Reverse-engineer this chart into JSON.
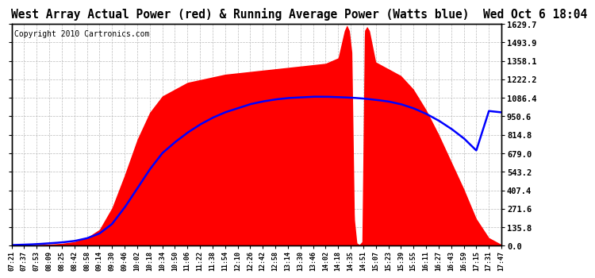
{
  "title": "West Array Actual Power (red) & Running Average Power (Watts blue)  Wed Oct 6 18:04",
  "copyright": "Copyright 2010 Cartronics.com",
  "ymin": 0.0,
  "ymax": 1629.7,
  "yticks": [
    0.0,
    135.8,
    271.6,
    407.4,
    543.2,
    679.0,
    814.8,
    950.6,
    1086.4,
    1222.2,
    1358.1,
    1493.9,
    1629.7
  ],
  "background_color": "#ffffff",
  "grid_color": "#bbbbbb",
  "fill_color": "#ff0000",
  "avg_line_color": "#0000ff",
  "title_fontsize": 10.5,
  "copyright_fontsize": 7,
  "xtick_labels": [
    "07:21",
    "07:37",
    "07:53",
    "08:09",
    "08:25",
    "08:42",
    "08:58",
    "09:14",
    "09:30",
    "09:46",
    "10:02",
    "10:18",
    "10:34",
    "10:50",
    "11:06",
    "11:22",
    "11:38",
    "11:54",
    "12:10",
    "12:26",
    "12:42",
    "12:58",
    "13:14",
    "13:30",
    "13:46",
    "14:02",
    "14:18",
    "14:35",
    "14:51",
    "15:07",
    "15:23",
    "15:39",
    "15:55",
    "16:11",
    "16:27",
    "16:43",
    "16:59",
    "17:15",
    "17:31",
    "17:47"
  ],
  "actual_power_points": [
    [
      0,
      0
    ],
    [
      1,
      5
    ],
    [
      2,
      8
    ],
    [
      3,
      12
    ],
    [
      4,
      18
    ],
    [
      5,
      30
    ],
    [
      6,
      60
    ],
    [
      7,
      120
    ],
    [
      8,
      280
    ],
    [
      9,
      520
    ],
    [
      10,
      780
    ],
    [
      11,
      980
    ],
    [
      12,
      1100
    ],
    [
      13,
      1150
    ],
    [
      14,
      1200
    ],
    [
      15,
      1220
    ],
    [
      16,
      1240
    ],
    [
      17,
      1260
    ],
    [
      18,
      1270
    ],
    [
      19,
      1280
    ],
    [
      20,
      1290
    ],
    [
      21,
      1300
    ],
    [
      22,
      1310
    ],
    [
      23,
      1320
    ],
    [
      24,
      1330
    ],
    [
      25,
      1340
    ],
    [
      26,
      1380
    ],
    [
      26.3,
      1500
    ],
    [
      26.5,
      1580
    ],
    [
      26.7,
      1620
    ],
    [
      26.9,
      1580
    ],
    [
      27.1,
      1420
    ],
    [
      27.3,
      200
    ],
    [
      27.5,
      20
    ],
    [
      27.7,
      10
    ],
    [
      27.9,
      30
    ],
    [
      28.1,
      1580
    ],
    [
      28.3,
      1610
    ],
    [
      28.5,
      1580
    ],
    [
      29,
      1350
    ],
    [
      30,
      1300
    ],
    [
      31,
      1250
    ],
    [
      32,
      1150
    ],
    [
      33,
      1000
    ],
    [
      34,
      820
    ],
    [
      35,
      620
    ],
    [
      36,
      420
    ],
    [
      37,
      200
    ],
    [
      38,
      60
    ],
    [
      39,
      10
    ]
  ],
  "avg_power_points": [
    [
      0,
      5
    ],
    [
      1,
      8
    ],
    [
      2,
      12
    ],
    [
      3,
      18
    ],
    [
      4,
      25
    ],
    [
      5,
      35
    ],
    [
      6,
      55
    ],
    [
      7,
      90
    ],
    [
      8,
      160
    ],
    [
      9,
      280
    ],
    [
      10,
      420
    ],
    [
      11,
      560
    ],
    [
      12,
      680
    ],
    [
      13,
      760
    ],
    [
      14,
      830
    ],
    [
      15,
      890
    ],
    [
      16,
      940
    ],
    [
      17,
      980
    ],
    [
      18,
      1010
    ],
    [
      19,
      1040
    ],
    [
      20,
      1060
    ],
    [
      21,
      1075
    ],
    [
      22,
      1085
    ],
    [
      23,
      1090
    ],
    [
      24,
      1095
    ],
    [
      25,
      1095
    ],
    [
      26,
      1092
    ],
    [
      27,
      1088
    ],
    [
      28,
      1082
    ],
    [
      29,
      1072
    ],
    [
      30,
      1060
    ],
    [
      31,
      1040
    ],
    [
      32,
      1010
    ],
    [
      33,
      970
    ],
    [
      34,
      920
    ],
    [
      35,
      860
    ],
    [
      36,
      790
    ],
    [
      37,
      700
    ],
    [
      38,
      990
    ],
    [
      39,
      980
    ]
  ]
}
